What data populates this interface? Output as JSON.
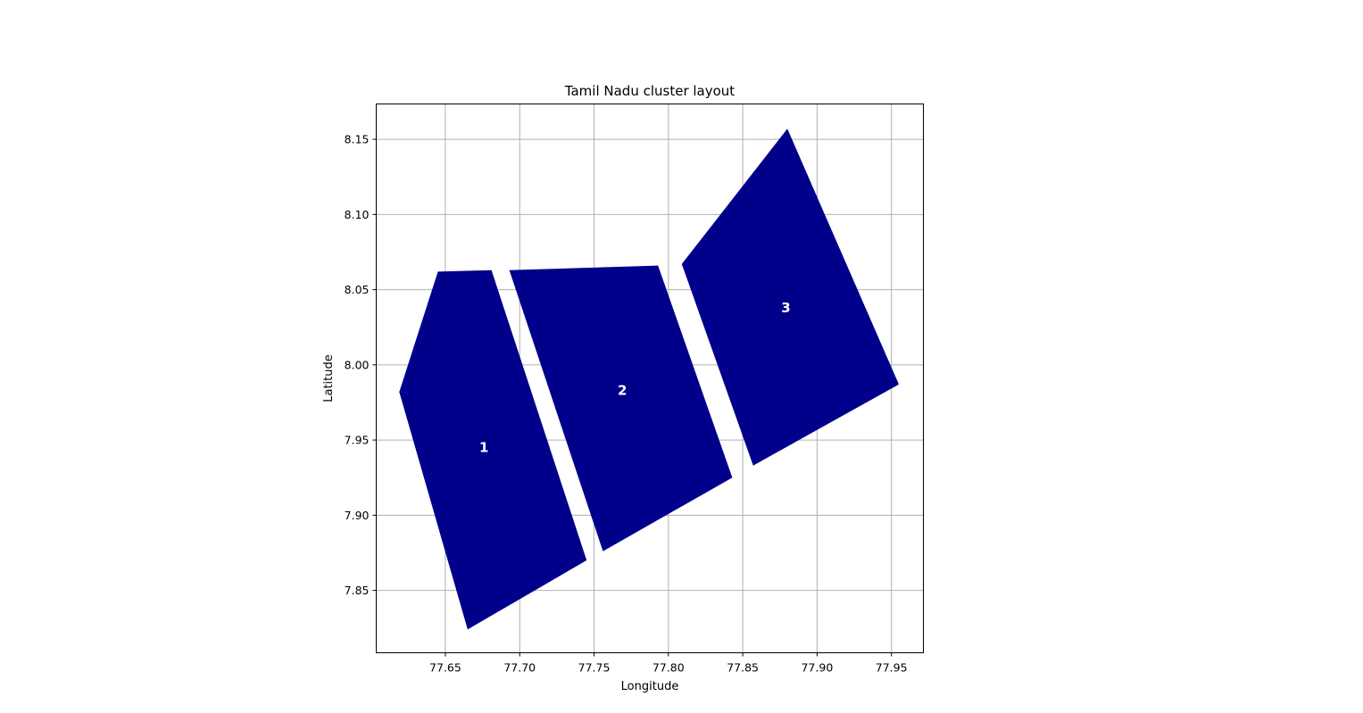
{
  "chart_data": {
    "type": "map",
    "title": "Tamil Nadu cluster layout",
    "xlabel": "Longitude",
    "ylabel": "Latitude",
    "xlim": [
      77.6035,
      77.9715
    ],
    "ylim": [
      7.8085,
      8.1735
    ],
    "xticks": [
      "77.65",
      "77.70",
      "77.75",
      "77.80",
      "77.85",
      "77.90",
      "77.95"
    ],
    "yticks": [
      "7.85",
      "7.90",
      "7.95",
      "8.00",
      "8.05",
      "8.10",
      "8.15"
    ],
    "grid": true,
    "fill_color": "#00008b",
    "label_color": "#ffffff",
    "polygons": [
      {
        "label": "1",
        "label_pos": [
          77.676,
          7.945
        ],
        "points": [
          [
            77.619,
            7.982
          ],
          [
            77.645,
            8.062
          ],
          [
            77.681,
            8.063
          ],
          [
            77.745,
            7.87
          ],
          [
            77.665,
            7.824
          ]
        ]
      },
      {
        "label": "2",
        "label_pos": [
          77.769,
          7.983
        ],
        "points": [
          [
            77.693,
            8.063
          ],
          [
            77.793,
            8.066
          ],
          [
            77.843,
            7.925
          ],
          [
            77.756,
            7.876
          ]
        ]
      },
      {
        "label": "3",
        "label_pos": [
          77.879,
          8.038
        ],
        "points": [
          [
            77.809,
            8.067
          ],
          [
            77.88,
            8.157
          ],
          [
            77.955,
            7.987
          ],
          [
            77.857,
            7.933
          ]
        ]
      }
    ]
  }
}
